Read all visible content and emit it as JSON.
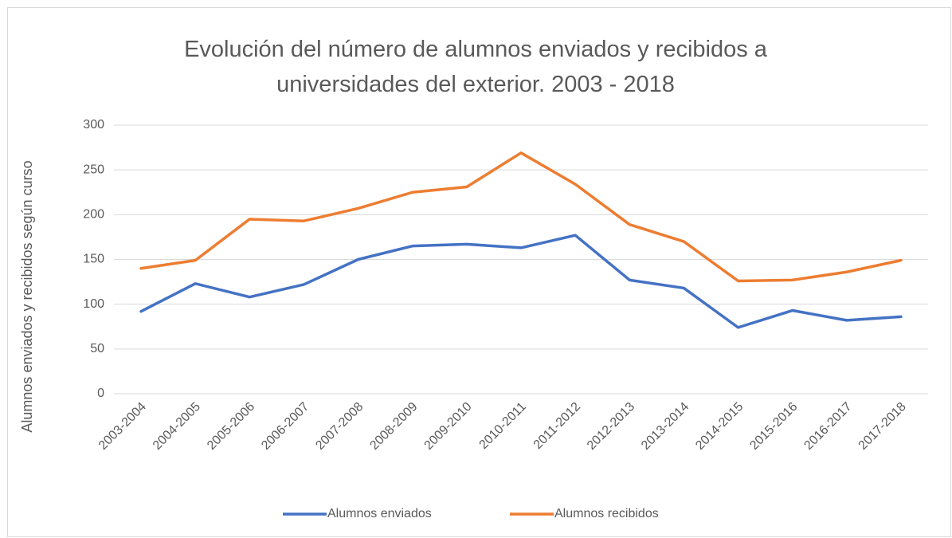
{
  "chart_data": {
    "type": "line",
    "title": "Evolución del número de alumnos enviados y recibidos a universidades del exterior. 2003 - 2018",
    "y_label": "Alumnos enviados y recibidos según curso",
    "categories": [
      "2003-2004",
      "2004-2005",
      "2005-2006",
      "2006-2007",
      "2007-2008",
      "2008-2009",
      "2009-2010",
      "2010-2011",
      "2011-2012",
      "2012-2013",
      "2013-2014",
      "2014-2015",
      "2015-2016",
      "2016-2017",
      "2017-2018"
    ],
    "series": [
      {
        "name": "Alumnos enviados",
        "color": "#4472c4",
        "values": [
          92,
          123,
          108,
          122,
          150,
          165,
          167,
          163,
          177,
          127,
          118,
          74,
          93,
          82,
          86
        ]
      },
      {
        "name": "Alumnos recibidos",
        "color": "#ed7d31",
        "values": [
          140,
          149,
          195,
          193,
          207,
          225,
          231,
          269,
          234,
          189,
          170,
          126,
          127,
          136,
          149
        ]
      }
    ],
    "ylim": [
      0,
      300
    ],
    "yticks": [
      0,
      50,
      100,
      150,
      200,
      250,
      300
    ],
    "grid": true,
    "legend": "bottom"
  }
}
